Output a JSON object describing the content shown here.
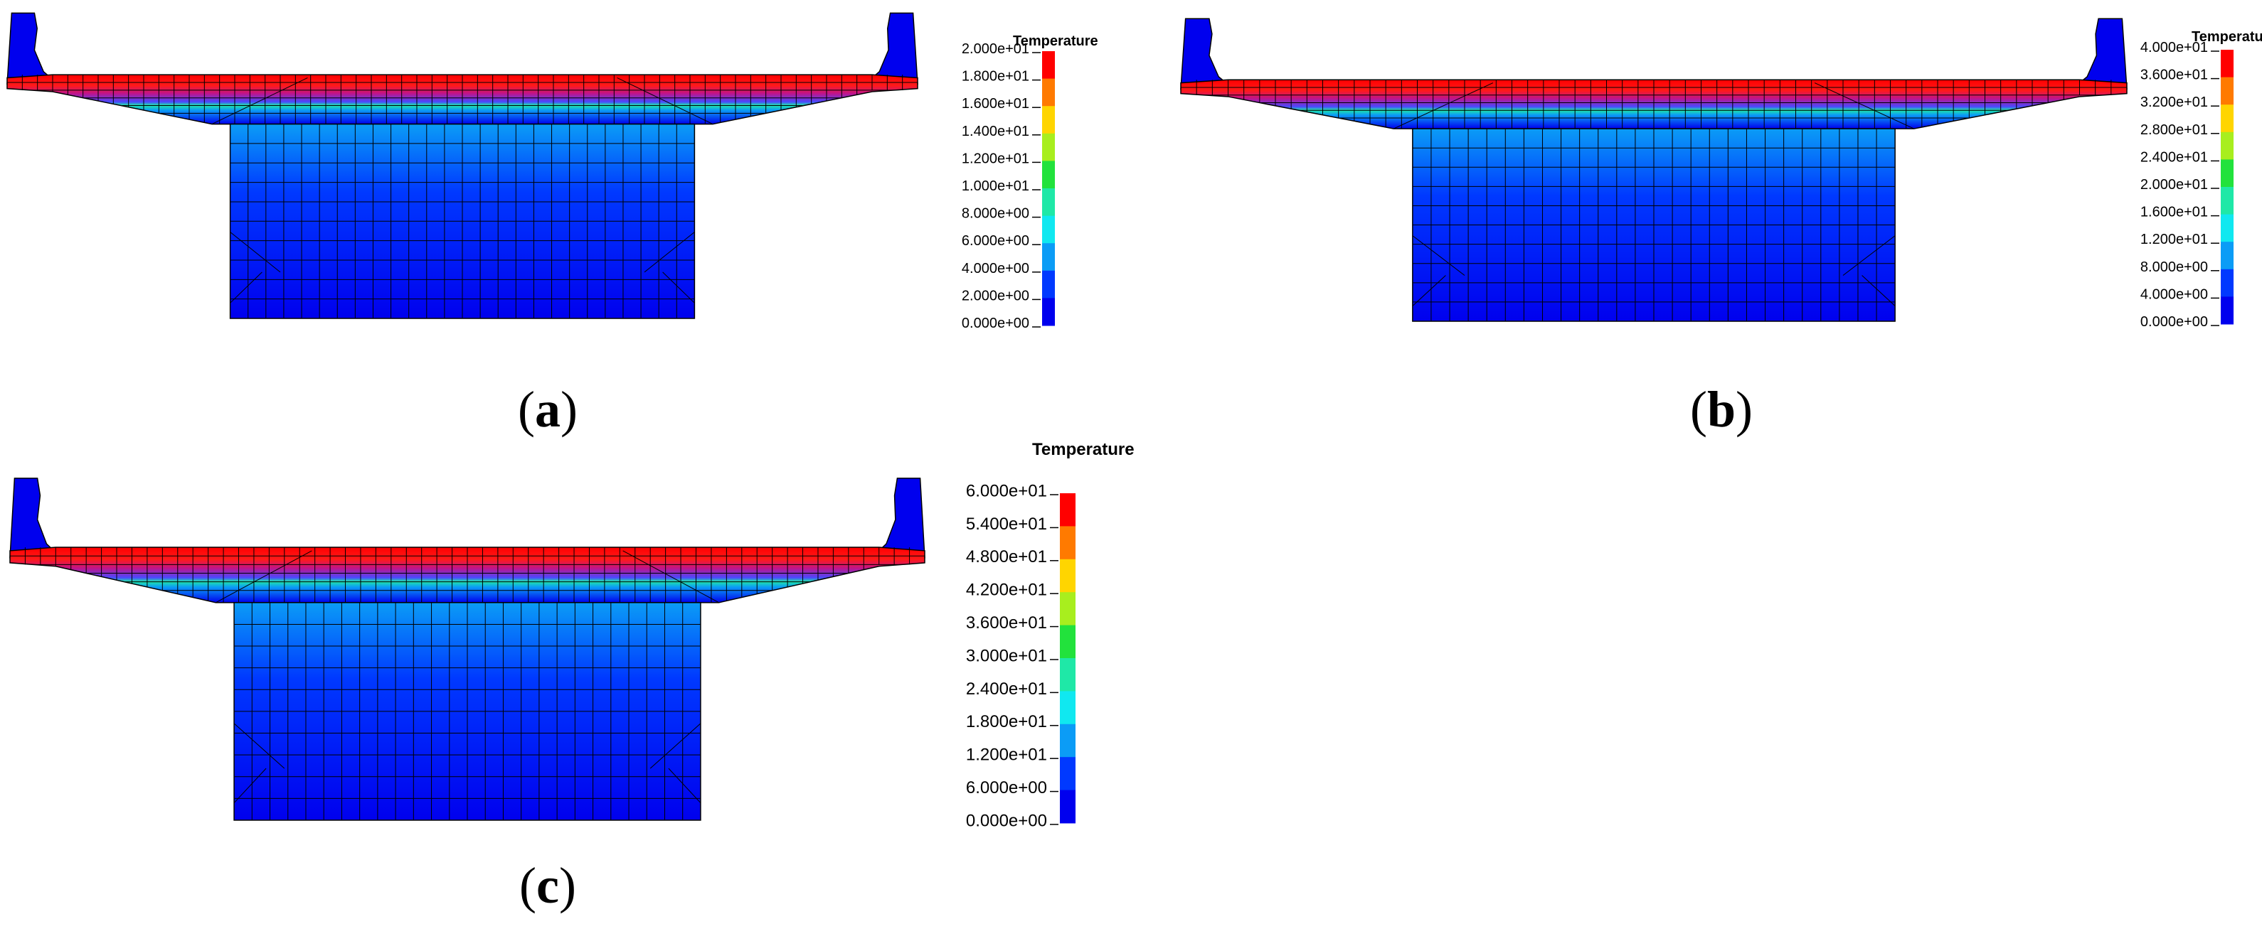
{
  "figure": {
    "panels": [
      {
        "id": "a",
        "caption_open": "(",
        "caption_letter": "a",
        "caption_close": ")",
        "legend_title": "Temperature",
        "legend_labels": [
          "2.000e+01",
          "1.800e+01",
          "1.600e+01",
          "1.400e+01",
          "1.200e+01",
          "1.000e+01",
          "8.000e+00",
          "6.000e+00",
          "4.000e+00",
          "2.000e+00",
          "0.000e+00"
        ]
      },
      {
        "id": "b",
        "caption_open": "(",
        "caption_letter": "b",
        "caption_close": ")",
        "legend_title": "Temperature",
        "legend_labels": [
          "4.000e+01",
          "3.600e+01",
          "3.200e+01",
          "2.800e+01",
          "2.400e+01",
          "2.000e+01",
          "1.600e+01",
          "1.200e+01",
          "8.000e+00",
          "4.000e+00",
          "0.000e+00"
        ]
      },
      {
        "id": "c",
        "caption_open": "(",
        "caption_letter": "c",
        "caption_close": ")",
        "legend_title": "Temperature",
        "legend_labels": [
          "6.000e+01",
          "5.400e+01",
          "4.800e+01",
          "4.200e+01",
          "3.600e+01",
          "3.000e+01",
          "2.400e+01",
          "1.800e+01",
          "1.200e+01",
          "6.000e+00",
          "0.000e+00"
        ]
      }
    ],
    "colormap": [
      "#ff0000",
      "#ff7a00",
      "#ffd500",
      "#a8ee1e",
      "#22e23c",
      "#1fe8a7",
      "#10e8f0",
      "#0b9cf6",
      "#0039ff",
      "#0000ee"
    ],
    "colors": {
      "mesh_line": "#000000",
      "cold": "#0000ee",
      "hot": "#ff0000"
    }
  }
}
